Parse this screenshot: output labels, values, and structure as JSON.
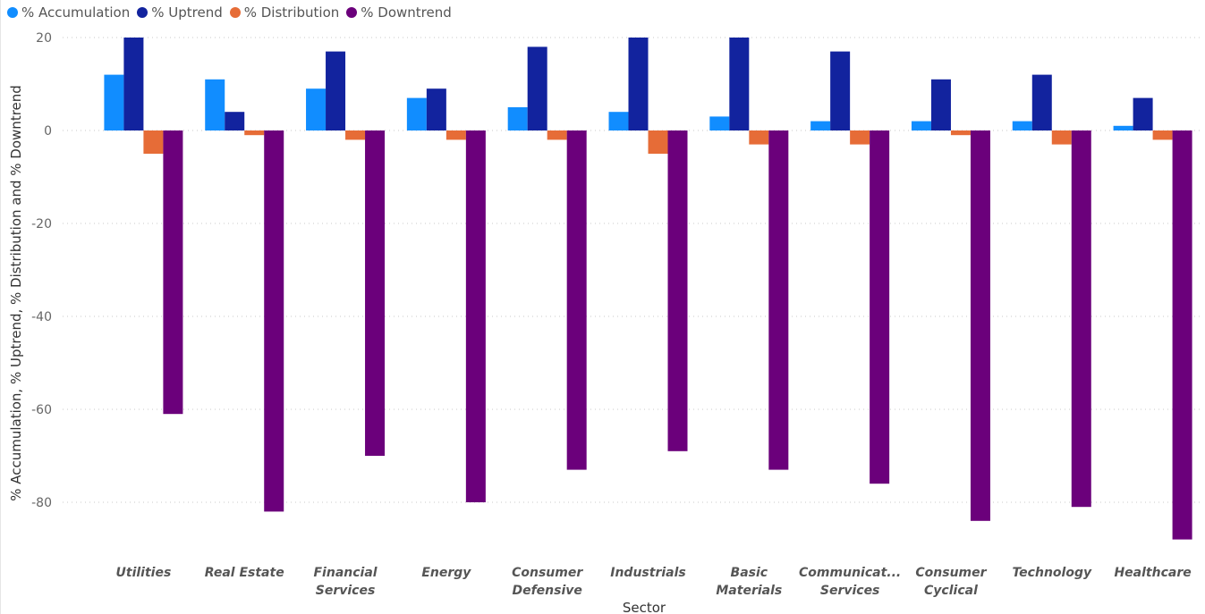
{
  "chart_data": {
    "type": "bar",
    "xlabel": "Sector",
    "ylabel": "% Accumulation, % Uptrend, % Distribution and % Downtrend",
    "ylim": [
      -90,
      20
    ],
    "yticks": [
      20,
      0,
      -20,
      -40,
      -60,
      -80
    ],
    "grid": true,
    "legend_position": "top-left",
    "categories": [
      [
        "Utilities"
      ],
      [
        "Real Estate"
      ],
      [
        "Financial",
        "Services"
      ],
      [
        "Energy"
      ],
      [
        "Consumer",
        "Defensive"
      ],
      [
        "Industrials"
      ],
      [
        "Basic",
        "Materials"
      ],
      [
        "Communicat...",
        "Services"
      ],
      [
        "Consumer",
        "Cyclical"
      ],
      [
        "Technology"
      ],
      [
        "Healthcare"
      ]
    ],
    "series": [
      {
        "name": "% Accumulation",
        "color": "#118DFF",
        "values": [
          12,
          11,
          9,
          7,
          5,
          4,
          3,
          2,
          2,
          2,
          1
        ]
      },
      {
        "name": "% Uptrend",
        "color": "#12239E",
        "values": [
          20,
          4,
          17,
          9,
          18,
          20,
          20,
          17,
          11,
          12,
          7
        ]
      },
      {
        "name": "% Distribution",
        "color": "#E66C37",
        "values": [
          -5,
          -1,
          -2,
          -2,
          -2,
          -5,
          -3,
          -3,
          -1,
          -3,
          -2
        ]
      },
      {
        "name": "% Downtrend",
        "color": "#6B007B",
        "values": [
          -61,
          -82,
          -70,
          -80,
          -73,
          -69,
          -73,
          -76,
          -84,
          -81,
          -88
        ]
      }
    ]
  }
}
